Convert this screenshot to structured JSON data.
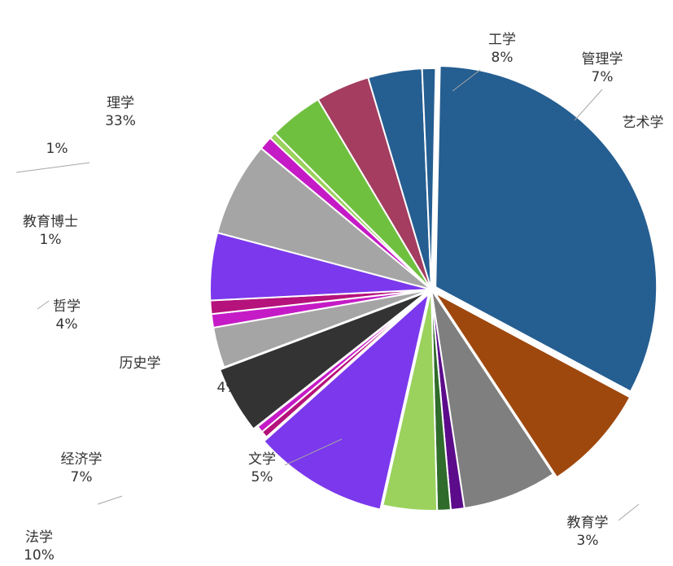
{
  "chart_data": {
    "type": "pie",
    "slices": [
      {
        "label": "理学",
        "value": 33,
        "value_label": "33%",
        "color": "#255e91"
      },
      {
        "label": "工学",
        "value": 8,
        "value_label": "8%",
        "color": "#9e480e"
      },
      {
        "label": "管理学",
        "value": 7,
        "value_label": "7%",
        "color": "#7f7f7f"
      },
      {
        "label": "艺术学",
        "value": 1,
        "value_label": "1%",
        "color": "#5c0b8b"
      },
      {
        "label": "",
        "value": 1,
        "value_label": "1%",
        "color": "#2f6b2a"
      },
      {
        "label": "",
        "value": 4,
        "value_label": "4%",
        "color": "#9ad25d"
      },
      {
        "label": "法学",
        "value": 10,
        "value_label": "10%",
        "color": "#7b38ec"
      },
      {
        "label": "",
        "value": 0.5,
        "value_label": "",
        "color": "#b5127b"
      },
      {
        "label": "",
        "value": 0.5,
        "value_label": "",
        "color": "#c51bc6"
      },
      {
        "label": "",
        "value": 5,
        "value_label": "",
        "color": "#333333"
      },
      {
        "label": "教育学",
        "value": 3,
        "value_label": "3%",
        "color": "#a5a5a5"
      },
      {
        "label": "",
        "value": 1,
        "value_label": "",
        "color": "#c51bc6"
      },
      {
        "label": "",
        "value": 1,
        "value_label": "",
        "color": "#b5127b"
      },
      {
        "label": "文学",
        "value": 5,
        "value_label": "5%",
        "color": "#7b38ec"
      },
      {
        "label": "经济学",
        "value": 7,
        "value_label": "7%",
        "color": "#a5a5a5"
      },
      {
        "label": "",
        "value": 1,
        "value_label": "",
        "color": "#c51bc6"
      },
      {
        "label": "",
        "value": 0.5,
        "value_label": "",
        "color": "#9ad25d"
      },
      {
        "label": "",
        "value": 4,
        "value_label": "",
        "color": "#70c040"
      },
      {
        "label": "历史学",
        "value": 4,
        "value_label": "4%",
        "color": "#a43d60"
      },
      {
        "label": "哲学",
        "value": 4,
        "value_label": "4%",
        "color": "#255e91"
      },
      {
        "label": "教育博士",
        "value": 1,
        "value_label": "1%",
        "color": "#255e91"
      }
    ],
    "legend": "none"
  },
  "labels": [
    {
      "text": "工学",
      "pct": "8%"
    },
    {
      "text": "管理学",
      "pct": "7%"
    },
    {
      "text": "理学",
      "pct": "33%"
    },
    {
      "text": "艺术学",
      "pct": ""
    },
    {
      "text": "",
      "pct": "1%"
    },
    {
      "text": "教育博士",
      "pct": "1%"
    },
    {
      "text": "哲学",
      "pct": "4%"
    },
    {
      "text": "历史学",
      "pct": ""
    },
    {
      "text": "",
      "pct": "4%"
    },
    {
      "text": "经济学",
      "pct": "7%"
    },
    {
      "text": "文学",
      "pct": "5%"
    },
    {
      "text": "法学",
      "pct": "10%"
    },
    {
      "text": "教育学",
      "pct": "3%"
    }
  ]
}
